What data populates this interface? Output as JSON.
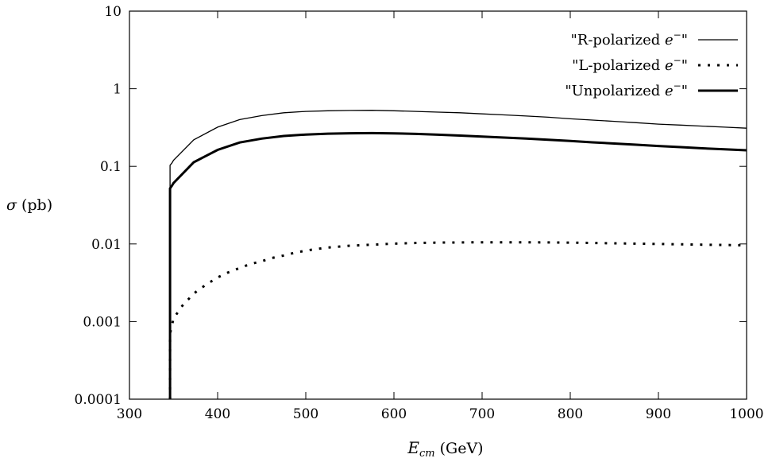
{
  "chart_data": {
    "type": "line",
    "xlabel": {
      "symbol": "E",
      "subscript": "cm",
      "unit": "(GeV)"
    },
    "ylabel": {
      "symbol": "σ",
      "unit": "(pb)"
    },
    "xlim": [
      300,
      1000
    ],
    "ylim": [
      0.0001,
      10
    ],
    "yscale": "log",
    "grid": false,
    "legend_position": "top-right",
    "x_ticks": [
      {
        "value": 300,
        "label": "300"
      },
      {
        "value": 400,
        "label": "400"
      },
      {
        "value": 500,
        "label": "500"
      },
      {
        "value": 600,
        "label": "600"
      },
      {
        "value": 700,
        "label": "700"
      },
      {
        "value": 800,
        "label": "800"
      },
      {
        "value": 900,
        "label": "900"
      },
      {
        "value": 1000,
        "label": "1000"
      }
    ],
    "y_ticks": [
      {
        "value": 0.0001,
        "label": "0.0001"
      },
      {
        "value": 0.001,
        "label": "0.001"
      },
      {
        "value": 0.01,
        "label": "0.01"
      },
      {
        "value": 0.1,
        "label": "0.1"
      },
      {
        "value": 1,
        "label": "1"
      },
      {
        "value": 10,
        "label": "10"
      }
    ],
    "series": [
      {
        "name": "\"R-polarized e⁻\"",
        "legend_text": "\"R-polarized ",
        "legend_symbol": "e",
        "legend_sup": "−",
        "legend_close": "\"",
        "style": "solid-thin",
        "color": "#000000",
        "x": [
          346,
          346,
          348,
          350,
          373,
          400,
          425,
          450,
          475,
          500,
          525,
          550,
          575,
          600,
          625,
          650,
          675,
          700,
          725,
          750,
          775,
          800,
          825,
          850,
          875,
          900,
          925,
          950,
          975,
          1000
        ],
        "y": [
          0.0001,
          0.103,
          0.11,
          0.12,
          0.22,
          0.32,
          0.4,
          0.45,
          0.49,
          0.51,
          0.52,
          0.525,
          0.528,
          0.52,
          0.51,
          0.5,
          0.49,
          0.475,
          0.46,
          0.445,
          0.43,
          0.41,
          0.395,
          0.38,
          0.365,
          0.35,
          0.34,
          0.33,
          0.32,
          0.31
        ]
      },
      {
        "name": "\"L-polarized e⁻\"",
        "legend_text": "\"L-polarized ",
        "legend_symbol": "e",
        "legend_sup": "−",
        "legend_close": "\"",
        "style": "dotted",
        "color": "#000000",
        "x": [
          346,
          346,
          350,
          360,
          373,
          387,
          400,
          412,
          425,
          437,
          450,
          462,
          475,
          487,
          500,
          512,
          525,
          550,
          575,
          600,
          625,
          650,
          700,
          750,
          800,
          850,
          900,
          950,
          1000
        ],
        "y": [
          0.0001,
          0.0007,
          0.0011,
          0.0016,
          0.0023,
          0.003,
          0.0037,
          0.0043,
          0.0049,
          0.0055,
          0.006,
          0.0066,
          0.0071,
          0.0077,
          0.0082,
          0.0086,
          0.009,
          0.0095,
          0.0098,
          0.0101,
          0.0103,
          0.0104,
          0.0105,
          0.0105,
          0.0104,
          0.0102,
          0.01,
          0.0098,
          0.0096
        ]
      },
      {
        "name": "\"Unpolarized e⁻\"",
        "legend_text": "\"Unpolarized ",
        "legend_symbol": "e",
        "legend_sup": "−",
        "legend_close": "\"",
        "style": "solid-thick",
        "color": "#000000",
        "x": [
          346,
          346,
          348,
          350,
          373,
          400,
          425,
          450,
          475,
          500,
          525,
          550,
          575,
          600,
          625,
          650,
          675,
          700,
          725,
          750,
          775,
          800,
          825,
          850,
          875,
          900,
          925,
          950,
          975,
          1000
        ],
        "y": [
          0.0001,
          0.052,
          0.056,
          0.061,
          0.113,
          0.163,
          0.203,
          0.228,
          0.246,
          0.257,
          0.264,
          0.267,
          0.268,
          0.266,
          0.262,
          0.256,
          0.249,
          0.242,
          0.235,
          0.228,
          0.22,
          0.212,
          0.204,
          0.197,
          0.19,
          0.183,
          0.177,
          0.171,
          0.166,
          0.161
        ]
      }
    ]
  }
}
